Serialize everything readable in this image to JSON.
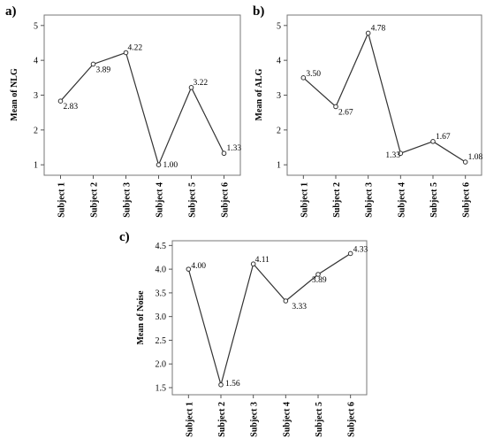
{
  "chart_data": [
    {
      "type": "line",
      "panel_label": "a)",
      "ylabel": "Mean of NLG",
      "categories": [
        "Subject 1",
        "Subject 2",
        "Subject 3",
        "Subject 4",
        "Subject 5",
        "Subject 6"
      ],
      "values": [
        2.83,
        3.89,
        4.22,
        1.0,
        3.22,
        1.33
      ],
      "value_labels": [
        "2.83",
        "3.89",
        "4.22",
        "1.00",
        "3.22",
        "1.33"
      ],
      "yticks": [
        "1",
        "2",
        "3",
        "4",
        "5"
      ],
      "ylim": [
        0.7,
        5.3
      ],
      "grid": false,
      "colors": {
        "line": "#333333",
        "frame": "#777777"
      }
    },
    {
      "type": "line",
      "panel_label": "b)",
      "ylabel": "Mean of ALG",
      "categories": [
        "Subject 1",
        "Subject 2",
        "Subject 3",
        "Subject 4",
        "Subject 5",
        "Subject 6"
      ],
      "values": [
        3.5,
        2.67,
        4.78,
        1.33,
        1.67,
        1.08
      ],
      "value_labels": [
        "3.50",
        "2.67",
        "4.78",
        "1.33",
        "1.67",
        "1.08"
      ],
      "yticks": [
        "1",
        "2",
        "3",
        "4",
        "5"
      ],
      "ylim": [
        0.7,
        5.3
      ],
      "grid": false,
      "colors": {
        "line": "#333333",
        "frame": "#777777"
      }
    },
    {
      "type": "line",
      "panel_label": "c)",
      "ylabel": "Mean of Noise",
      "categories": [
        "Subject 1",
        "Subject 2",
        "Subject 3",
        "Subject 4",
        "Subject 5",
        "Subject 6"
      ],
      "values": [
        4.0,
        1.56,
        4.11,
        3.33,
        3.89,
        4.33
      ],
      "value_labels": [
        "4.00",
        "1.56",
        "4.11",
        "3.33",
        "3.89",
        "4.33"
      ],
      "yticks": [
        "1.5",
        "2.0",
        "2.5",
        "3.0",
        "3.5",
        "4.0",
        "4.5"
      ],
      "ylim": [
        1.35,
        4.6
      ],
      "grid": false,
      "colors": {
        "line": "#333333",
        "frame": "#777777"
      }
    }
  ]
}
